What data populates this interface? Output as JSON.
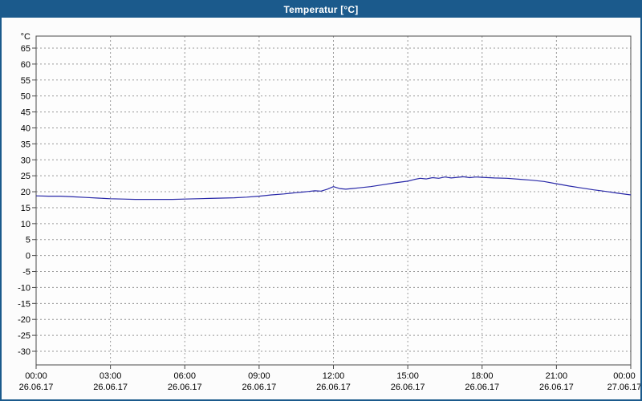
{
  "window": {
    "title": "Temperatur [°C]"
  },
  "colors": {
    "titlebar_bg": "#1b5a8c",
    "titlebar_text": "#ffffff",
    "border": "#1b5a8c",
    "chart_bg": "#fcfcfc",
    "plot_bg": "#fdfdfd",
    "grid": "#999999",
    "frame": "#4a4a4a",
    "line": "#2828a8",
    "tick_text": "#000000"
  },
  "chart_data": {
    "type": "line",
    "title": "Temperatur [°C]",
    "xlabel": "",
    "ylabel": "°C",
    "ylim": [
      -30,
      65
    ],
    "y_tick_step": 5,
    "grid": true,
    "legend": "none",
    "y_ticks": [
      65,
      60,
      55,
      50,
      45,
      40,
      35,
      30,
      25,
      20,
      15,
      10,
      5,
      0,
      -5,
      -10,
      -15,
      -20,
      -25,
      -30
    ],
    "xlim_hours": [
      0,
      24
    ],
    "x_ticks": [
      {
        "time": "00:00",
        "date": "26.06.17"
      },
      {
        "time": "03:00",
        "date": "26.06.17"
      },
      {
        "time": "06:00",
        "date": "26.06.17"
      },
      {
        "time": "09:00",
        "date": "26.06.17"
      },
      {
        "time": "12:00",
        "date": "26.06.17"
      },
      {
        "time": "15:00",
        "date": "26.06.17"
      },
      {
        "time": "18:00",
        "date": "26.06.17"
      },
      {
        "time": "21:00",
        "date": "26.06.17"
      },
      {
        "time": "00:00",
        "date": "27.06.17"
      }
    ],
    "series": [
      {
        "name": "Temperatur",
        "x_hours": [
          0,
          0.5,
          1,
          1.5,
          2,
          2.5,
          3,
          3.5,
          4,
          4.5,
          5,
          5.5,
          6,
          6.5,
          7,
          7.5,
          8,
          8.5,
          9,
          9.5,
          10,
          10.25,
          10.5,
          10.75,
          11,
          11.25,
          11.5,
          11.75,
          12,
          12.25,
          12.5,
          12.75,
          13,
          13.5,
          14,
          14.5,
          15,
          15.25,
          15.5,
          15.75,
          16,
          16.25,
          16.5,
          16.75,
          17,
          17.25,
          17.5,
          17.75,
          18,
          18.5,
          19,
          19.5,
          20,
          20.5,
          21,
          21.5,
          22,
          22.5,
          23,
          23.5,
          24
        ],
        "values": [
          18.7,
          18.6,
          18.6,
          18.4,
          18.2,
          18.0,
          17.8,
          17.7,
          17.6,
          17.6,
          17.6,
          17.6,
          17.7,
          17.8,
          17.9,
          18.0,
          18.1,
          18.3,
          18.6,
          19.0,
          19.3,
          19.5,
          19.7,
          19.9,
          20.1,
          20.3,
          20.2,
          20.8,
          21.6,
          21.0,
          20.8,
          21.0,
          21.2,
          21.6,
          22.2,
          22.8,
          23.3,
          23.8,
          24.2,
          24.0,
          24.4,
          24.2,
          24.6,
          24.3,
          24.5,
          24.7,
          24.4,
          24.6,
          24.5,
          24.3,
          24.2,
          23.9,
          23.6,
          23.2,
          22.5,
          21.8,
          21.2,
          20.6,
          20.1,
          19.5,
          19.0
        ]
      }
    ]
  }
}
